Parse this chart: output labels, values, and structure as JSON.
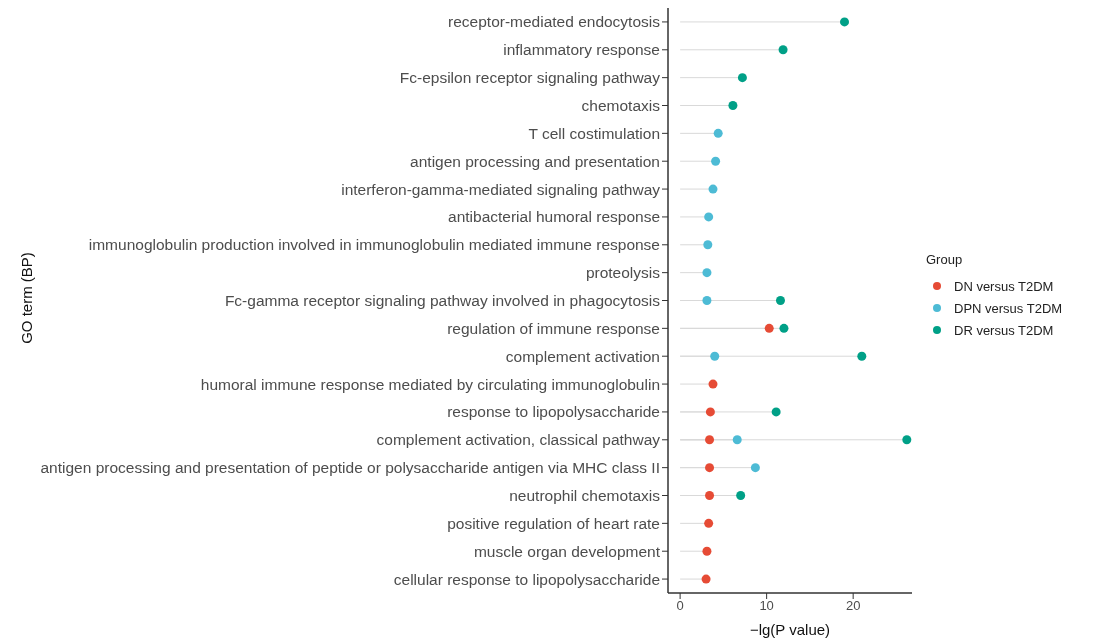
{
  "chart_data": {
    "type": "lollipop",
    "orientation": "horizontal",
    "xlabel": "−lg(P value)",
    "ylabel": "GO term (BP)",
    "legend_title": "Group",
    "legend": "right",
    "marker": "circle",
    "categories": [
      "receptor-mediated endocytosis",
      "inflammatory response",
      "Fc-epsilon receptor signaling pathway",
      "chemotaxis",
      "T cell costimulation",
      "antigen processing and presentation",
      "interferon-gamma-mediated signaling pathway",
      "antibacterial humoral response",
      "immunoglobulin production involved in immunoglobulin mediated immune response",
      "proteolysis",
      "Fc-gamma receptor signaling pathway involved in phagocytosis",
      "regulation of immune response",
      "complement activation",
      "humoral immune response mediated by circulating immunoglobulin",
      "response to lipopolysaccharide",
      "complement activation, classical pathway",
      "antigen processing and presentation of peptide or polysaccharide antigen via MHC class II",
      "neutrophil chemotaxis",
      "positive regulation of heart rate",
      "muscle organ development",
      "cellular response to lipopolysaccharide"
    ],
    "series": [
      {
        "name": "DN versus T2DM",
        "color": "#e64b35",
        "values": [
          null,
          null,
          null,
          null,
          null,
          null,
          null,
          null,
          null,
          null,
          null,
          10.3,
          null,
          3.8,
          3.5,
          3.4,
          3.4,
          3.4,
          3.3,
          3.1,
          3.0
        ]
      },
      {
        "name": "DPN versus T2DM",
        "color": "#4dbbd5",
        "values": [
          null,
          null,
          null,
          null,
          4.4,
          4.1,
          3.8,
          3.3,
          3.2,
          3.1,
          3.1,
          null,
          4.0,
          null,
          null,
          6.6,
          8.7,
          null,
          null,
          null,
          null
        ]
      },
      {
        "name": "DR versus T2DM",
        "color": "#00a087",
        "values": [
          19.0,
          11.9,
          7.2,
          6.1,
          null,
          null,
          null,
          null,
          null,
          null,
          11.6,
          12.0,
          21.0,
          null,
          11.1,
          26.2,
          null,
          7.0,
          null,
          null,
          null
        ]
      }
    ],
    "xlim": [
      -1.4,
      26.8
    ],
    "xticks": [
      0,
      10,
      20
    ]
  }
}
